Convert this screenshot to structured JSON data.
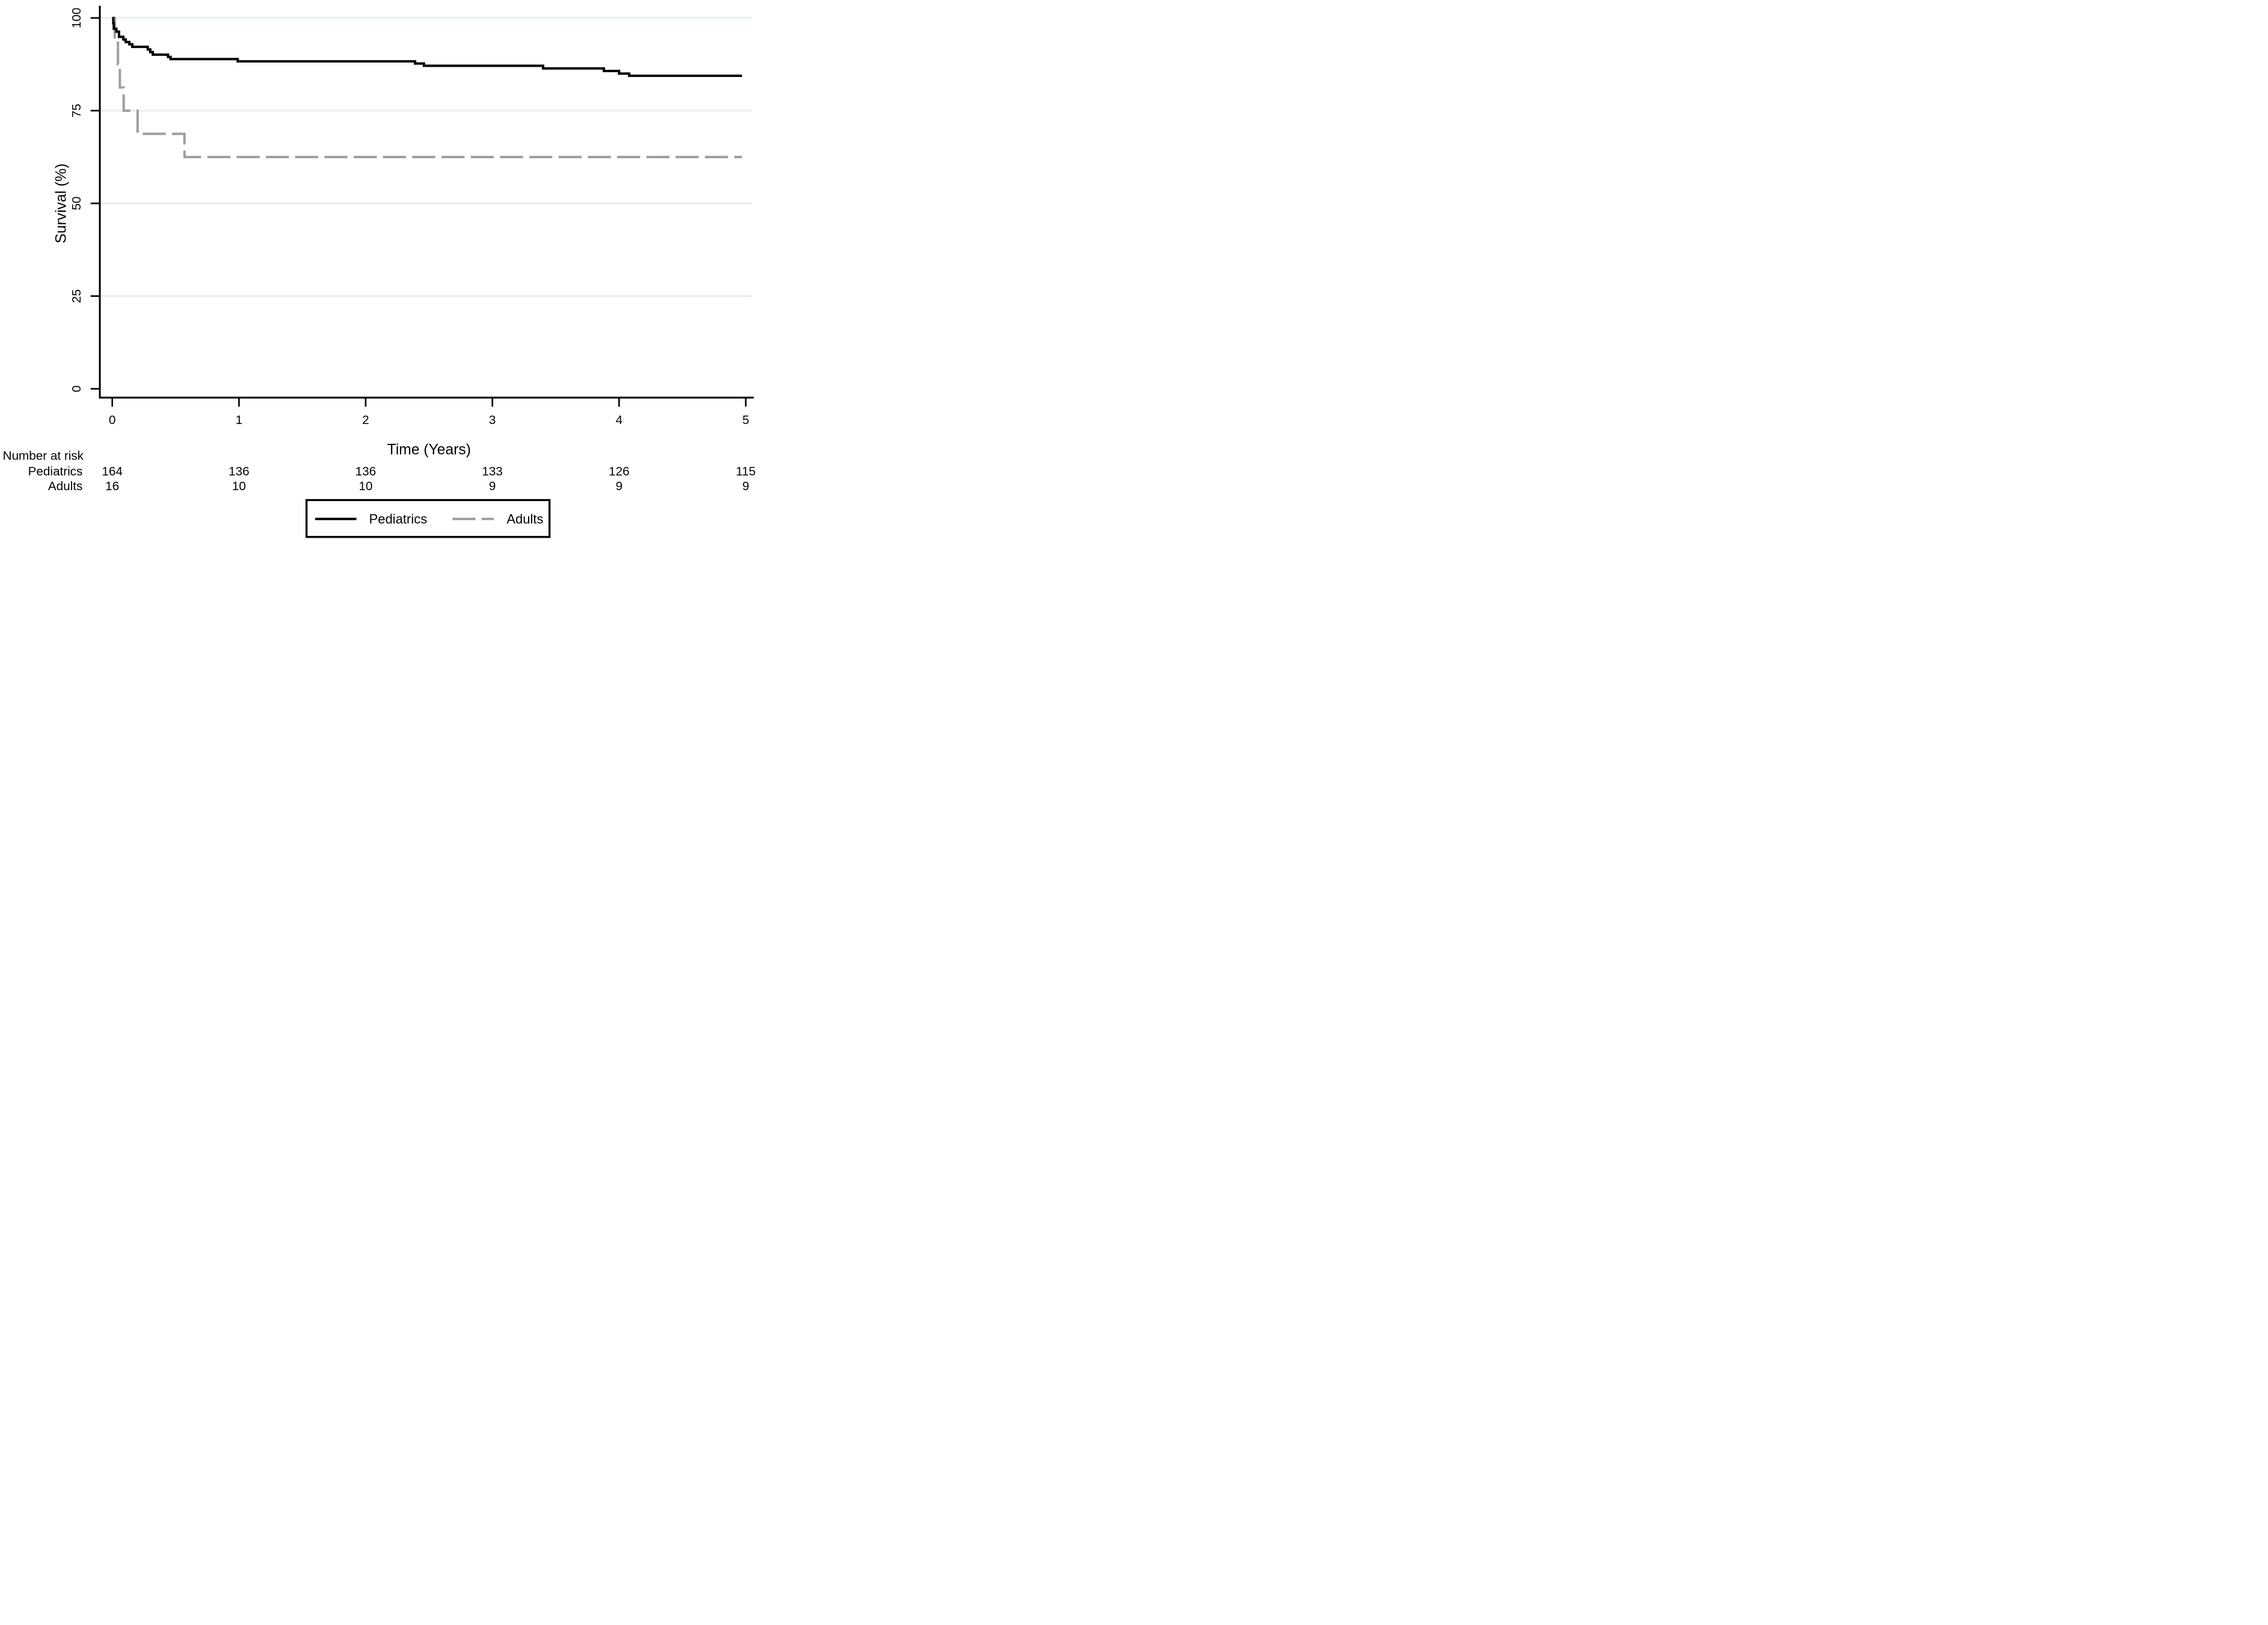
{
  "chart_data": {
    "type": "line",
    "variant": "kaplan_meier_survival_step",
    "title": "",
    "xlabel": "Time (Years)",
    "ylabel": "Survival (%)",
    "xlim": [
      0,
      5
    ],
    "ylim": [
      0,
      100
    ],
    "xticks": [
      "0",
      "1",
      "2",
      "3",
      "4",
      "5"
    ],
    "yticks": [
      "0",
      "25",
      "50",
      "75",
      "100"
    ],
    "grid": "horizontal gridlines at y=25,50,75,100; none at y=0",
    "legend_position": "bottom center, boxed",
    "series": [
      {
        "name": "Pediatrics",
        "line": "solid",
        "color": "#000000",
        "steps": [
          [
            0,
            100
          ],
          [
            0.008,
            98.6
          ],
          [
            0.012,
            97.1
          ],
          [
            0.032,
            96.3
          ],
          [
            0.053,
            94.9
          ],
          [
            0.087,
            94.2
          ],
          [
            0.106,
            93.5
          ],
          [
            0.135,
            92.9
          ],
          [
            0.158,
            92.2
          ],
          [
            0.28,
            91.5
          ],
          [
            0.3,
            90.8
          ],
          [
            0.32,
            90.1
          ],
          [
            0.44,
            89.5
          ],
          [
            0.46,
            88.9
          ],
          [
            0.99,
            88.3
          ],
          [
            2.39,
            87.7
          ],
          [
            2.46,
            87.1
          ],
          [
            3.4,
            86.4
          ],
          [
            3.88,
            85.7
          ],
          [
            4.0,
            85.0
          ],
          [
            4.08,
            84.4
          ],
          [
            4.97,
            84.4
          ]
        ]
      },
      {
        "name": "Adults",
        "line": "dashed",
        "color": "#9e9e9e",
        "steps": [
          [
            0,
            100
          ],
          [
            0.02,
            93.75
          ],
          [
            0.045,
            87.5
          ],
          [
            0.06,
            81.25
          ],
          [
            0.09,
            75
          ],
          [
            0.2,
            68.75
          ],
          [
            0.57,
            62.5
          ],
          [
            4.97,
            62.5
          ]
        ]
      }
    ],
    "risk_table": {
      "title": "Number at risk",
      "times": [
        0,
        1,
        2,
        3,
        4,
        5
      ],
      "rows": [
        {
          "label": "Pediatrics",
          "counts": [
            "164",
            "136",
            "136",
            "133",
            "126",
            "115"
          ]
        },
        {
          "label": "Adults",
          "counts": [
            "16",
            "10",
            "10",
            "9",
            "9",
            "9"
          ]
        }
      ]
    },
    "legend": {
      "items": [
        {
          "label": "Pediatrics",
          "line": "solid",
          "color": "#000000"
        },
        {
          "label": "Adults",
          "line": "dashed",
          "color": "#9e9e9e"
        }
      ]
    },
    "colors": {
      "pediatrics": "#000000",
      "adults": "#9e9e9e",
      "grid": "#e9eff2",
      "axis": "#000000",
      "background": "#ffffff"
    }
  }
}
